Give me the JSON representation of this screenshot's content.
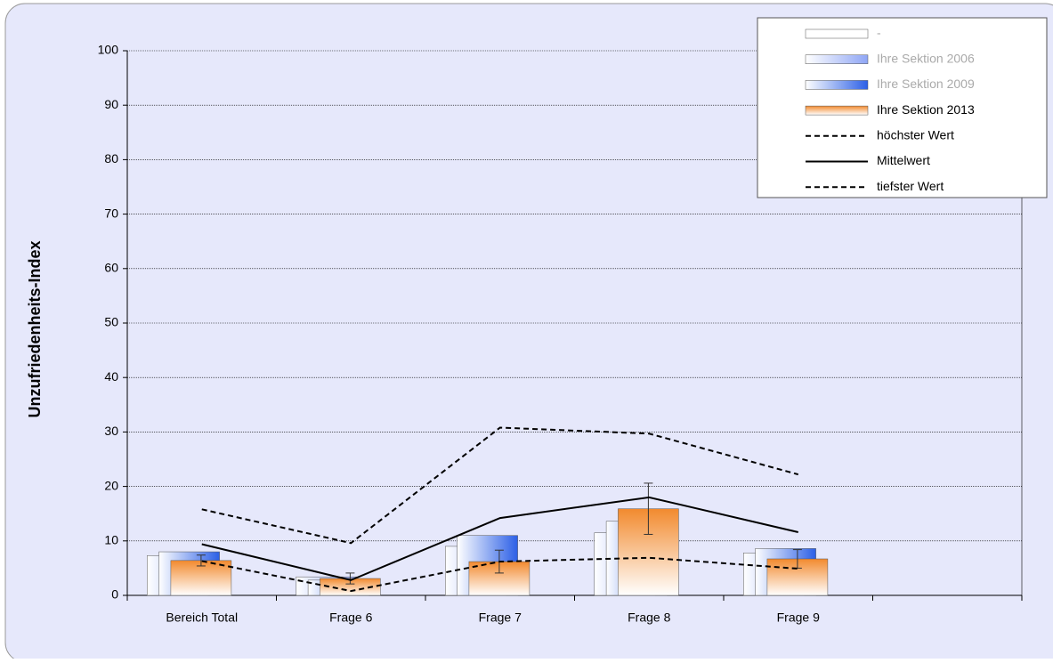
{
  "chart_data": {
    "type": "bar",
    "y_label": "Unzufriedenheits-Index",
    "categories": [
      "Bereich Total",
      "Frage 6",
      "Frage 7",
      "Frage 8",
      "Frage 9",
      null
    ],
    "series": [
      {
        "name": "-",
        "color": "#ffffff",
        "values": [
          null,
          null,
          null,
          null,
          null,
          null
        ]
      },
      {
        "name": "Ihre Sektion  2006",
        "color": "#8fa6f5",
        "values": [
          7.3,
          3.4,
          9.0,
          11.5,
          7.8,
          null
        ]
      },
      {
        "name": "Ihre Sektion  2009",
        "color": "#2b5fe6",
        "values": [
          8.0,
          2.8,
          11.0,
          13.6,
          8.6,
          null
        ]
      },
      {
        "name": "Ihre Sektion  2013",
        "color": "#f28a2e",
        "values": [
          6.4,
          3.1,
          6.2,
          15.9,
          6.7,
          null
        ],
        "errors": [
          1.0,
          1.0,
          2.1,
          4.7,
          1.7,
          null
        ]
      },
      {
        "name": "höchster Wert",
        "type": "line",
        "dash": true,
        "color": "#000000",
        "values": [
          15.8,
          9.6,
          30.8,
          29.7,
          22.2,
          null
        ]
      },
      {
        "name": "Mittelwert",
        "type": "line",
        "dash": false,
        "color": "#000000",
        "values": [
          9.4,
          2.8,
          14.2,
          18.0,
          11.6,
          null
        ]
      },
      {
        "name": "tiefster Wert",
        "type": "line",
        "dash": true,
        "color": "#000000",
        "values": [
          6.3,
          0.8,
          6.2,
          6.9,
          4.9,
          null
        ]
      }
    ],
    "legend_dim": [
      "-",
      "Ihre Sektion  2006",
      "Ihre Sektion  2009"
    ],
    "ylim": [
      0,
      100
    ],
    "yticks": [
      0,
      10,
      20,
      30,
      40,
      50,
      60,
      70,
      80,
      90,
      100
    ],
    "grid": true
  }
}
